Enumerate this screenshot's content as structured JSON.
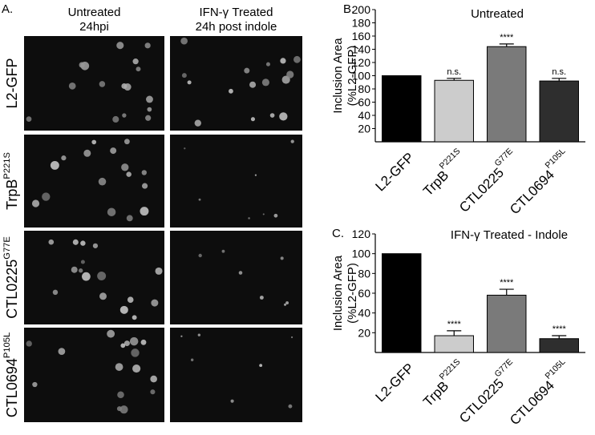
{
  "panel_a": {
    "label": "A.",
    "columns": [
      {
        "title": "Untreated",
        "subtitle": "24hpi"
      },
      {
        "title": "IFN-γ Treated",
        "subtitle": "24h post indole"
      }
    ],
    "rows": [
      {
        "name": "L2-GFP",
        "superscript": null
      },
      {
        "name": "TrpB",
        "superscript": "P221S"
      },
      {
        "name": "CTL0225",
        "superscript": "G77E"
      },
      {
        "name": "CTL0694",
        "superscript": "P105L"
      }
    ]
  },
  "chart_data": [
    {
      "type": "bar",
      "label": "B.",
      "title": "Untreated",
      "y_label": [
        "Inclusion Area",
        "(%L2-GFP)"
      ],
      "categories": [
        "L2-GFP",
        "TrpB",
        "CTL0225",
        "CTL0694"
      ],
      "category_superscripts": [
        null,
        "P221S",
        "G77E",
        "P105L"
      ],
      "values": [
        100,
        93,
        144,
        92
      ],
      "errors": [
        0,
        3,
        4,
        4
      ],
      "annotations": [
        null,
        "n.s.",
        "****",
        "n.s."
      ],
      "colors": [
        "#000000",
        "#cccccc",
        "#7a7a7a",
        "#2e2e2e"
      ],
      "ylim": [
        0,
        200
      ],
      "yticks": [
        20,
        40,
        60,
        80,
        100,
        120,
        140,
        160,
        180,
        200
      ]
    },
    {
      "type": "bar",
      "label": "C.",
      "title": "IFN-γ Treated - Indole",
      "y_label": [
        "Inclusion Area",
        "(%L2-GFP)"
      ],
      "categories": [
        "L2-GFP",
        "TrpB",
        "CTL0225",
        "CTL0694"
      ],
      "category_superscripts": [
        null,
        "P221S",
        "G77E",
        "P105L"
      ],
      "values": [
        100,
        17,
        58,
        14
      ],
      "errors": [
        0,
        5,
        6,
        3
      ],
      "annotations": [
        null,
        "****",
        "****",
        "****"
      ],
      "colors": [
        "#000000",
        "#cccccc",
        "#7a7a7a",
        "#2e2e2e"
      ],
      "ylim": [
        0,
        120
      ],
      "yticks": [
        20,
        40,
        60,
        80,
        100,
        120
      ]
    }
  ]
}
